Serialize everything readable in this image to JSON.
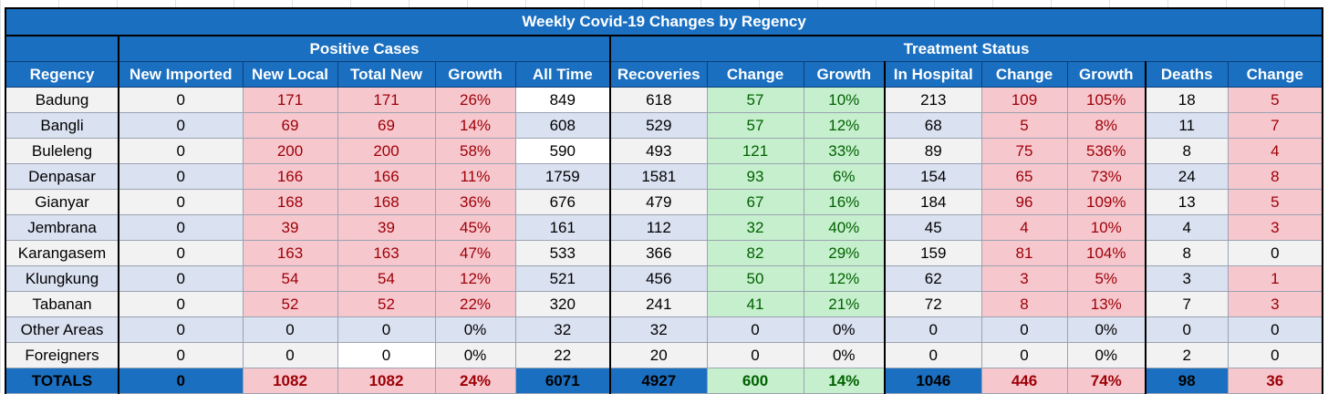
{
  "title": "Weekly Covid-19 Changes by Regency",
  "groups": {
    "positive": "Positive Cases",
    "treatment": "Treatment Status"
  },
  "columns": [
    "Regency",
    "New Imported",
    "New Local",
    "Total New",
    "Growth",
    "All Time",
    "Recoveries",
    "Change",
    "Growth",
    "In Hospital",
    "Change",
    "Growth",
    "Deaths",
    "Change"
  ],
  "rows": [
    [
      "Badung",
      "0",
      "171",
      "171",
      "26%",
      "849",
      "618",
      "57",
      "10%",
      "213",
      "109",
      "105%",
      "18",
      "5"
    ],
    [
      "Bangli",
      "0",
      "69",
      "69",
      "14%",
      "608",
      "529",
      "57",
      "12%",
      "68",
      "5",
      "8%",
      "11",
      "7"
    ],
    [
      "Buleleng",
      "0",
      "200",
      "200",
      "58%",
      "590",
      "493",
      "121",
      "33%",
      "89",
      "75",
      "536%",
      "8",
      "4"
    ],
    [
      "Denpasar",
      "0",
      "166",
      "166",
      "11%",
      "1759",
      "1581",
      "93",
      "6%",
      "154",
      "65",
      "73%",
      "24",
      "8"
    ],
    [
      "Gianyar",
      "0",
      "168",
      "168",
      "36%",
      "676",
      "479",
      "67",
      "16%",
      "184",
      "96",
      "109%",
      "13",
      "5"
    ],
    [
      "Jembrana",
      "0",
      "39",
      "39",
      "45%",
      "161",
      "112",
      "32",
      "40%",
      "45",
      "4",
      "10%",
      "4",
      "3"
    ],
    [
      "Karangasem",
      "0",
      "163",
      "163",
      "47%",
      "533",
      "366",
      "82",
      "29%",
      "159",
      "81",
      "104%",
      "8",
      "0"
    ],
    [
      "Klungkung",
      "0",
      "54",
      "54",
      "12%",
      "521",
      "456",
      "50",
      "12%",
      "62",
      "3",
      "5%",
      "3",
      "1"
    ],
    [
      "Tabanan",
      "0",
      "52",
      "52",
      "22%",
      "320",
      "241",
      "41",
      "21%",
      "72",
      "8",
      "13%",
      "7",
      "3"
    ],
    [
      "Other Areas",
      "0",
      "0",
      "0",
      "0%",
      "32",
      "32",
      "0",
      "0%",
      "0",
      "0",
      "0%",
      "0",
      "0"
    ],
    [
      "Foreigners",
      "0",
      "0",
      "0",
      "0%",
      "22",
      "20",
      "0",
      "0%",
      "0",
      "0",
      "0%",
      "2",
      "0"
    ]
  ],
  "totals": [
    "TOTALS",
    "0",
    "1082",
    "1082",
    "24%",
    "6071",
    "4927",
    "600",
    "14%",
    "1046",
    "446",
    "74%",
    "98",
    "36"
  ],
  "colors": {
    "header_blue": "#1a6fc0",
    "pink_fill": "#f7c7ce",
    "pink_text": "#9c0006",
    "green_fill": "#c6efcd",
    "green_text": "#006100",
    "band_gray": "#f2f2f2",
    "band_blue": "#dae1f1"
  }
}
